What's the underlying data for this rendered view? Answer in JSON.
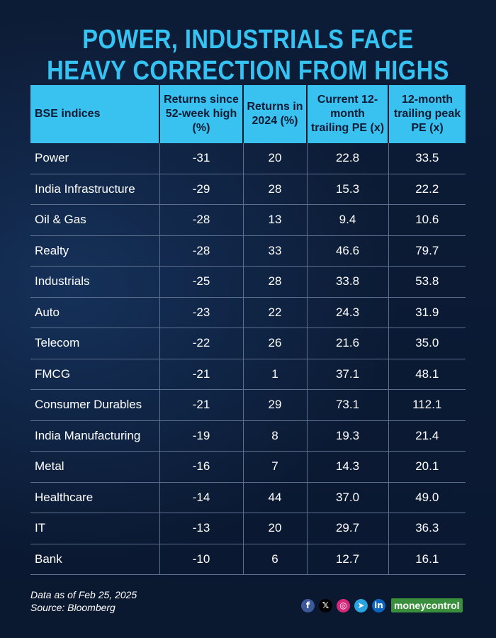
{
  "title": [
    "POWER, INDUSTRIALS FACE",
    "HEAVY CORRECTION FROM HIGHS"
  ],
  "chart_data": {
    "type": "table",
    "columns": [
      "BSE indices",
      "Returns since 52-week high (%)",
      "Returns in 2024 (%)",
      "Current 12-month trailing PE (x)",
      "12-month trailing peak PE (x)"
    ],
    "rows": [
      [
        "Power",
        "-31",
        "20",
        "22.8",
        "33.5"
      ],
      [
        "India Infrastructure",
        "-29",
        "28",
        "15.3",
        "22.2"
      ],
      [
        "Oil & Gas",
        "-28",
        "13",
        "9.4",
        "10.6"
      ],
      [
        "Realty",
        "-28",
        "33",
        "46.6",
        "79.7"
      ],
      [
        "Industrials",
        "-25",
        "28",
        "33.8",
        "53.8"
      ],
      [
        "Auto",
        "-23",
        "22",
        "24.3",
        "31.9"
      ],
      [
        "Telecom",
        "-22",
        "26",
        "21.6",
        "35.0"
      ],
      [
        "FMCG",
        "-21",
        "1",
        "37.1",
        "48.1"
      ],
      [
        "Consumer Durables",
        "-21",
        "29",
        "73.1",
        "112.1"
      ],
      [
        "India Manufacturing",
        "-19",
        "8",
        "19.3",
        "21.4"
      ],
      [
        "Metal",
        "-16",
        "7",
        "14.3",
        "20.1"
      ],
      [
        "Healthcare",
        "-14",
        "44",
        "37.0",
        "49.0"
      ],
      [
        "IT",
        "-13",
        "20",
        "29.7",
        "36.3"
      ],
      [
        "Bank",
        "-10",
        "6",
        "12.7",
        "16.1"
      ]
    ]
  },
  "footer": {
    "date_note": "Data as of Feb 25, 2025",
    "source": "Source: Bloomberg",
    "brand": "moneycontrol",
    "socials": [
      {
        "name": "facebook-icon",
        "glyph": "f",
        "color": "#3b5998"
      },
      {
        "name": "x-icon",
        "glyph": "𝕏",
        "color": "#000000"
      },
      {
        "name": "instagram-icon",
        "glyph": "◎",
        "color": "#d6287a"
      },
      {
        "name": "telegram-icon",
        "glyph": "➤",
        "color": "#2aa3df"
      },
      {
        "name": "linkedin-icon",
        "glyph": "in",
        "color": "#0a66c2"
      }
    ]
  }
}
